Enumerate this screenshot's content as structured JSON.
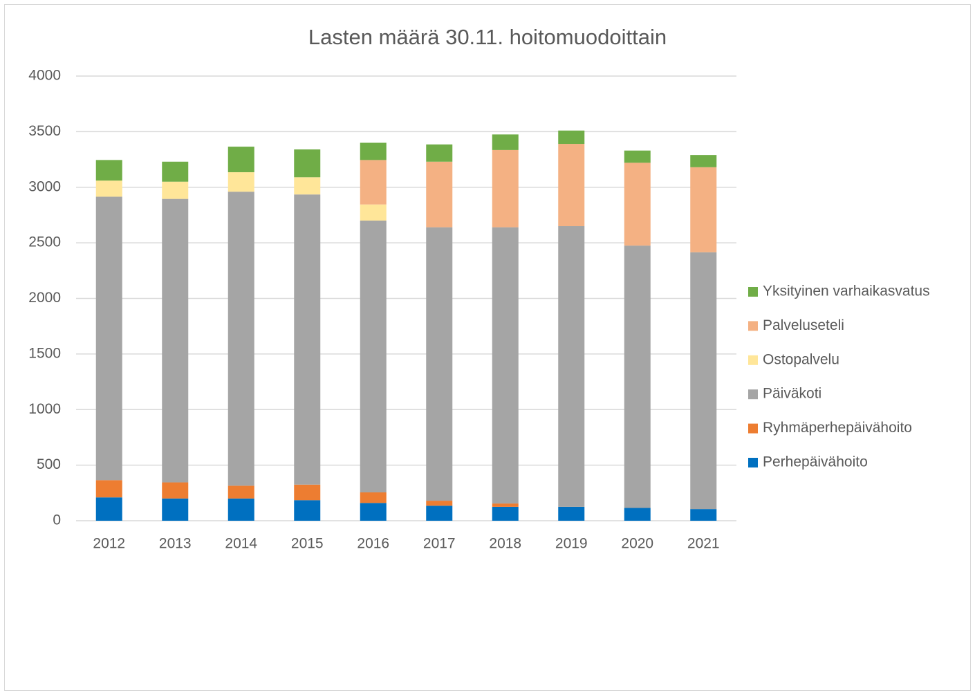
{
  "chart_data": {
    "type": "stacked_bar",
    "title": "Lasten määrä 30.11. hoitomuodoittain",
    "categories": [
      "2012",
      "2013",
      "2014",
      "2015",
      "2016",
      "2017",
      "2018",
      "2019",
      "2020",
      "2021"
    ],
    "series": [
      {
        "name": "Perhepäivähoito",
        "color": "#0070c0",
        "values": [
          210,
          200,
          200,
          185,
          160,
          135,
          125,
          125,
          115,
          105
        ]
      },
      {
        "name": "Ryhmäperhepäivähoito",
        "color": "#ed7d31",
        "values": [
          155,
          145,
          115,
          140,
          95,
          45,
          30,
          0,
          0,
          0
        ]
      },
      {
        "name": "Päiväkoti",
        "color": "#a5a5a5",
        "values": [
          2550,
          2550,
          2645,
          2610,
          2445,
          2460,
          2485,
          2525,
          2360,
          2310
        ]
      },
      {
        "name": "Ostopalvelu",
        "color": "#ffe699",
        "values": [
          145,
          155,
          175,
          155,
          145,
          0,
          0,
          0,
          0,
          0
        ]
      },
      {
        "name": "Palveluseteli",
        "color": "#f4b183",
        "values": [
          0,
          0,
          0,
          0,
          400,
          590,
          695,
          740,
          745,
          765
        ]
      },
      {
        "name": "Yksityinen varhaikasvatus",
        "color": "#70ad47",
        "values": [
          185,
          180,
          230,
          250,
          155,
          155,
          140,
          120,
          110,
          110
        ]
      }
    ],
    "ylim": [
      0,
      4000
    ],
    "yticks": [
      0,
      500,
      1000,
      1500,
      2000,
      2500,
      3000,
      3500,
      4000
    ],
    "grid": true,
    "legend": "right"
  }
}
